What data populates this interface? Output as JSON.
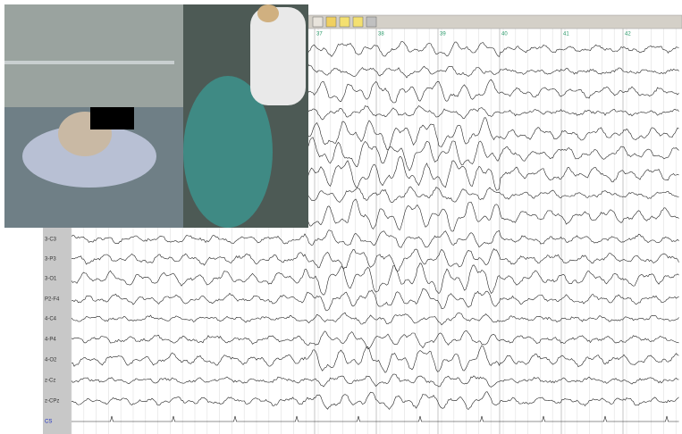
{
  "time_markers": [
    "37",
    "38",
    "39",
    "40",
    "41",
    "42"
  ],
  "channels": [
    "3-C3",
    "3-P3",
    "3-O1",
    "P2-F4",
    "4-C4",
    "4-P4",
    "4-O2",
    "z-Cz",
    "z-CPz",
    "CS"
  ]
}
